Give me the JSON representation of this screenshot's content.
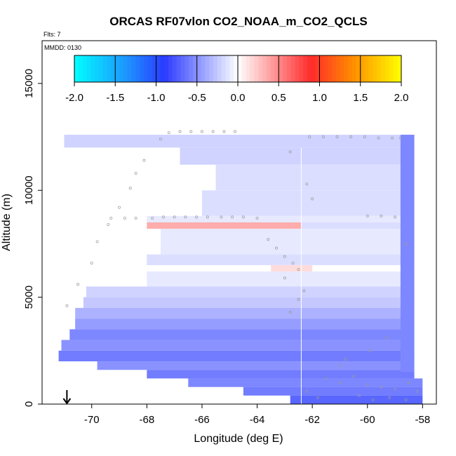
{
  "chart_data": {
    "type": "heatmap",
    "title": "ORCAS RF07vlon CO2_NOAA_m_CO2_QCLS",
    "corner_notes": [
      "Flts: 7",
      "MMDD: 0130"
    ],
    "xlabel": "Longitude (deg E)",
    "ylabel": "Altitude (m)",
    "xlim": [
      -71.8,
      -57.5
    ],
    "ylim": [
      0,
      17000
    ],
    "x_ticks": [
      -70,
      -68,
      -66,
      -64,
      -62,
      -60,
      -58
    ],
    "y_ticks": [
      0,
      5000,
      10000,
      15000
    ],
    "colorbar": {
      "ticks": [
        -2.0,
        -1.5,
        -1.0,
        -0.5,
        0.0,
        0.5,
        1.0,
        1.5,
        2.0
      ],
      "tick_labels": [
        "-2.0",
        "-1.5",
        "-1.0",
        "-0.5",
        "0.0",
        "0.5",
        "1.0",
        "1.5",
        "2.0"
      ],
      "range": [
        -2.0,
        2.0
      ],
      "colors": [
        "#00ffff",
        "#1e8fff",
        "#2a3aff",
        "#ffffff",
        "#ff2a2a",
        "#ff8c00",
        "#ffff00"
      ]
    },
    "colors": {
      "diff_light": "#e6e6ff",
      "diff_mid": "#b0b0ff",
      "diff_strong": "#8080ff",
      "positive_band": "#ff9a9a",
      "track_points": "#999999"
    },
    "layers": [
      {
        "x0": -71.0,
        "x1": -58.3,
        "y0": 12000,
        "y1": 12600,
        "value": -0.2
      },
      {
        "x0": -66.8,
        "x1": -58.3,
        "y0": 11200,
        "y1": 12000,
        "value": -0.2
      },
      {
        "x0": -65.5,
        "x1": -58.3,
        "y0": 10000,
        "y1": 11200,
        "value": -0.15
      },
      {
        "x0": -66.0,
        "x1": -58.3,
        "y0": 8800,
        "y1": 10000,
        "value": -0.15
      },
      {
        "x0": -68.0,
        "x1": -58.3,
        "y0": 8500,
        "y1": 8800,
        "value": -0.1
      },
      {
        "x0": -68.0,
        "x1": -62.4,
        "y0": 8200,
        "y1": 8500,
        "value": 0.35
      },
      {
        "x0": -62.4,
        "x1": -58.3,
        "y0": 8200,
        "y1": 8500,
        "value": -0.15
      },
      {
        "x0": -67.5,
        "x1": -58.3,
        "y0": 7000,
        "y1": 8200,
        "value": -0.1
      },
      {
        "x0": -68.0,
        "x1": -58.3,
        "y0": 6500,
        "y1": 7000,
        "value": -0.15
      },
      {
        "x0": -63.5,
        "x1": -62.0,
        "y0": 6200,
        "y1": 6500,
        "value": 0.15
      },
      {
        "x0": -68.0,
        "x1": -58.3,
        "y0": 5500,
        "y1": 6200,
        "value": -0.1
      },
      {
        "x0": -70.2,
        "x1": -58.3,
        "y0": 5000,
        "y1": 5500,
        "value": -0.2
      },
      {
        "x0": -70.3,
        "x1": -58.3,
        "y0": 4500,
        "y1": 5000,
        "value": -0.25
      },
      {
        "x0": -70.6,
        "x1": -58.3,
        "y0": 4000,
        "y1": 4500,
        "value": -0.35
      },
      {
        "x0": -70.6,
        "x1": -58.3,
        "y0": 3500,
        "y1": 4000,
        "value": -0.45
      },
      {
        "x0": -70.8,
        "x1": -58.3,
        "y0": 3000,
        "y1": 3500,
        "value": -0.55
      },
      {
        "x0": -71.1,
        "x1": -58.3,
        "y0": 2500,
        "y1": 3000,
        "value": -0.5
      },
      {
        "x0": -71.2,
        "x1": -58.3,
        "y0": 2000,
        "y1": 2500,
        "value": -0.6
      },
      {
        "x0": -69.8,
        "x1": -58.3,
        "y0": 1600,
        "y1": 2000,
        "value": -0.5
      },
      {
        "x0": -68.0,
        "x1": -58.3,
        "y0": 1200,
        "y1": 1600,
        "value": -0.6
      },
      {
        "x0": -66.5,
        "x1": -58.0,
        "y0": 800,
        "y1": 1200,
        "value": -0.55
      },
      {
        "x0": -64.5,
        "x1": -58.0,
        "y0": 400,
        "y1": 800,
        "value": -0.6
      },
      {
        "x0": -62.8,
        "x1": -58.0,
        "y0": 0,
        "y1": 400,
        "value": -0.7
      },
      {
        "x0": -58.8,
        "x1": -58.3,
        "y0": 1500,
        "y1": 12600,
        "value": -0.55
      }
    ],
    "track_points": [
      {
        "x": -70.9,
        "y": 4600
      },
      {
        "x": -70.5,
        "y": 5600
      },
      {
        "x": -70.0,
        "y": 6600
      },
      {
        "x": -69.8,
        "y": 7600
      },
      {
        "x": -69.4,
        "y": 8400
      },
      {
        "x": -69.3,
        "y": 8700
      },
      {
        "x": -69.0,
        "y": 9200
      },
      {
        "x": -68.6,
        "y": 10100
      },
      {
        "x": -68.4,
        "y": 10800
      },
      {
        "x": -68.1,
        "y": 11400
      },
      {
        "x": -67.5,
        "y": 12400
      },
      {
        "x": -67.2,
        "y": 12700
      },
      {
        "x": -66.8,
        "y": 12750
      },
      {
        "x": -66.4,
        "y": 12750
      },
      {
        "x": -66.0,
        "y": 12750
      },
      {
        "x": -65.6,
        "y": 12750
      },
      {
        "x": -65.2,
        "y": 12750
      },
      {
        "x": -64.8,
        "y": 12750
      },
      {
        "x": -68.8,
        "y": 8700
      },
      {
        "x": -68.4,
        "y": 8700
      },
      {
        "x": -67.8,
        "y": 8700
      },
      {
        "x": -67.4,
        "y": 8750
      },
      {
        "x": -67.0,
        "y": 8750
      },
      {
        "x": -66.6,
        "y": 8750
      },
      {
        "x": -66.2,
        "y": 8750
      },
      {
        "x": -65.8,
        "y": 8750
      },
      {
        "x": -65.3,
        "y": 8750
      },
      {
        "x": -64.9,
        "y": 8750
      },
      {
        "x": -64.5,
        "y": 8750
      },
      {
        "x": -64.0,
        "y": 8700
      },
      {
        "x": -63.6,
        "y": 7700
      },
      {
        "x": -63.3,
        "y": 7300
      },
      {
        "x": -63.0,
        "y": 6900
      },
      {
        "x": -62.7,
        "y": 6600
      },
      {
        "x": -62.5,
        "y": 6300
      },
      {
        "x": -63.0,
        "y": 5900
      },
      {
        "x": -62.3,
        "y": 5300
      },
      {
        "x": -62.5,
        "y": 4900
      },
      {
        "x": -62.8,
        "y": 4300
      },
      {
        "x": -62.0,
        "y": 9600
      },
      {
        "x": -62.2,
        "y": 10300
      },
      {
        "x": -62.8,
        "y": 11800
      },
      {
        "x": -62.1,
        "y": 12500
      },
      {
        "x": -61.6,
        "y": 12500
      },
      {
        "x": -61.1,
        "y": 12500
      },
      {
        "x": -60.6,
        "y": 12500
      },
      {
        "x": -60.1,
        "y": 12500
      },
      {
        "x": -59.6,
        "y": 12450
      },
      {
        "x": -59.1,
        "y": 12450
      },
      {
        "x": -58.8,
        "y": 12450
      },
      {
        "x": -60.0,
        "y": 8800
      },
      {
        "x": -59.5,
        "y": 8800
      },
      {
        "x": -59.0,
        "y": 8750
      },
      {
        "x": -58.6,
        "y": 7500
      },
      {
        "x": -61.0,
        "y": 1800
      },
      {
        "x": -61.5,
        "y": 1200
      },
      {
        "x": -61.0,
        "y": 1000
      },
      {
        "x": -60.5,
        "y": 1300
      },
      {
        "x": -60.0,
        "y": 900
      },
      {
        "x": -59.5,
        "y": 800
      },
      {
        "x": -59.0,
        "y": 700
      },
      {
        "x": -58.5,
        "y": 1000
      },
      {
        "x": -58.2,
        "y": 600
      },
      {
        "x": -60.3,
        "y": 400
      },
      {
        "x": -59.8,
        "y": 200
      },
      {
        "x": -59.2,
        "y": 300
      },
      {
        "x": -58.6,
        "y": 200
      },
      {
        "x": -61.8,
        "y": 300
      },
      {
        "x": -62.2,
        "y": 600
      },
      {
        "x": -60.8,
        "y": 2100
      },
      {
        "x": -59.9,
        "y": 2500
      },
      {
        "x": -59.3,
        "y": 3100
      }
    ],
    "arrow_marker": {
      "x": -70.9,
      "y": 0
    }
  }
}
